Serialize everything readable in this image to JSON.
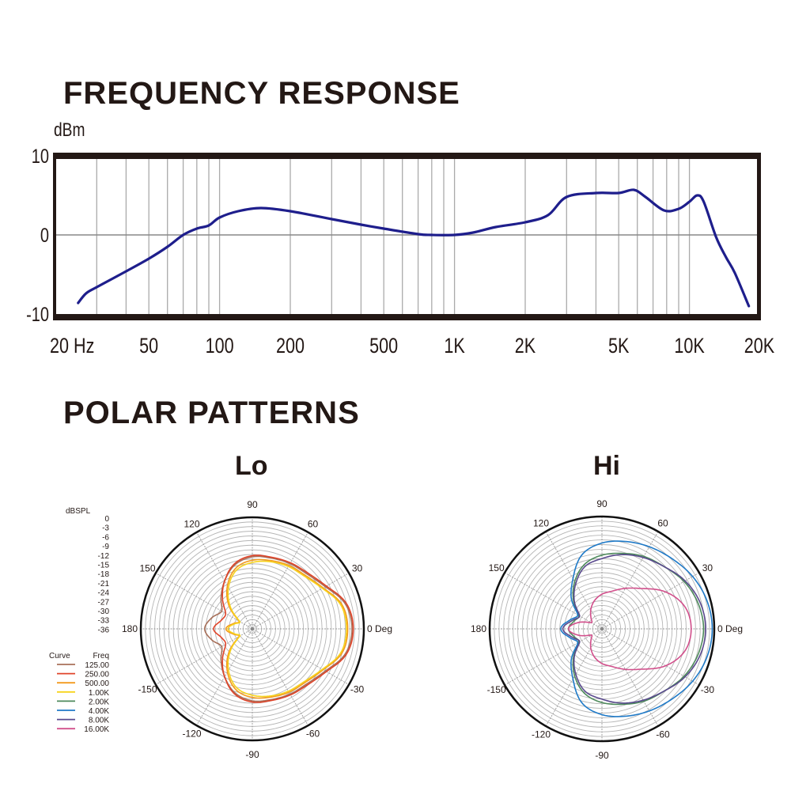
{
  "headings": {
    "frequency": "FREQUENCY RESPONSE",
    "polar": "POLAR PATTERNS",
    "lo": "Lo",
    "hi": "Hi"
  },
  "chart_data": [
    {
      "type": "line",
      "title": "FREQUENCY RESPONSE",
      "ylabel": "dBm",
      "xscale": "log",
      "xlim": [
        20,
        20000
      ],
      "ylim": [
        -10,
        10
      ],
      "yticks": [
        {
          "v": 10,
          "label": "10"
        },
        {
          "v": 0,
          "label": "0"
        },
        {
          "v": -10,
          "label": "-10"
        }
      ],
      "xticks": [
        {
          "v": 20,
          "label": "20 Hz"
        },
        {
          "v": 50,
          "label": "50"
        },
        {
          "v": 100,
          "label": "100"
        },
        {
          "v": 200,
          "label": "200"
        },
        {
          "v": 500,
          "label": "500"
        },
        {
          "v": 1000,
          "label": "1K"
        },
        {
          "v": 2000,
          "label": "2K"
        },
        {
          "v": 5000,
          "label": "5K"
        },
        {
          "v": 10000,
          "label": "10K"
        },
        {
          "v": 20000,
          "label": "20K"
        }
      ],
      "color": "#1e1e8c",
      "x": [
        25,
        27,
        30,
        40,
        50,
        60,
        70,
        80,
        90,
        100,
        120,
        150,
        200,
        300,
        400,
        500,
        700,
        800,
        1000,
        1200,
        1500,
        2000,
        2500,
        3000,
        4000,
        5000,
        5800,
        6500,
        7800,
        9000,
        10000,
        10800,
        11500,
        13000,
        14300,
        15600,
        17900
      ],
      "y": [
        -8.6,
        -7.4,
        -6.6,
        -4.6,
        -3.0,
        -1.5,
        0.0,
        0.8,
        1.2,
        2.2,
        3.0,
        3.4,
        3.0,
        2.0,
        1.3,
        0.8,
        0.1,
        0.0,
        0.0,
        0.3,
        1.0,
        1.6,
        2.5,
        4.8,
        5.3,
        5.3,
        5.7,
        4.8,
        3.1,
        3.3,
        4.2,
        5.0,
        4.2,
        -0.3,
        -2.8,
        -4.8,
        -9.0
      ]
    },
    {
      "type": "polar",
      "title": "Lo",
      "rlabel": "dBSPL",
      "rlim": [
        -36,
        0
      ],
      "rticks": [
        "0",
        "-3",
        "-6",
        "-9",
        "-12",
        "-15",
        "-18",
        "-21",
        "-24",
        "-27",
        "-30",
        "-33",
        "-36"
      ],
      "angle_labels": [
        {
          "a": 0,
          "label": "0 Deg"
        },
        {
          "a": 30,
          "label": "30"
        },
        {
          "a": 60,
          "label": "60"
        },
        {
          "a": 90,
          "label": "90"
        },
        {
          "a": 120,
          "label": "120"
        },
        {
          "a": 150,
          "label": "150"
        },
        {
          "a": 180,
          "label": "180"
        },
        {
          "a": -150,
          "label": "-150"
        },
        {
          "a": -120,
          "label": "-120"
        },
        {
          "a": -90,
          "label": "-90"
        },
        {
          "a": -60,
          "label": "-60"
        },
        {
          "a": -30,
          "label": "-30"
        }
      ],
      "angles": [
        0,
        15,
        30,
        45,
        60,
        75,
        90,
        105,
        120,
        135,
        150,
        165,
        180
      ],
      "series": [
        {
          "name": "125.00",
          "color": "#a8705a",
          "values": [
            -3.6,
            -4.7,
            -8.6,
            -10.8,
            -11.5,
            -12.2,
            -12.6,
            -14.4,
            -18.0,
            -21.6,
            -24.5,
            -22.3,
            -20.5
          ]
        },
        {
          "name": "250.00",
          "color": "#e0442a",
          "values": [
            -3.2,
            -4.3,
            -8.2,
            -10.4,
            -11.2,
            -11.9,
            -12.2,
            -14.0,
            -18.0,
            -22.3,
            -26.0,
            -25.5,
            -23.4
          ]
        },
        {
          "name": "500.00",
          "color": "#f39a1e",
          "values": [
            -5.0,
            -5.8,
            -9.4,
            -11.5,
            -12.2,
            -13.0,
            -13.7,
            -15.5,
            -19.8,
            -25.2,
            -31.0,
            -29.5,
            -27.4
          ]
        },
        {
          "name": "1.00K",
          "color": "#f7d31c",
          "values": [
            -5.4,
            -6.2,
            -9.7,
            -11.9,
            -12.6,
            -13.4,
            -14.4,
            -16.2,
            -20.5,
            -25.9,
            -31.3,
            -29.9,
            -28.1
          ]
        }
      ]
    },
    {
      "type": "polar",
      "title": "Hi",
      "rlim": [
        -36,
        0
      ],
      "angle_labels": [
        {
          "a": 0,
          "label": "0 Deg"
        },
        {
          "a": 30,
          "label": "30"
        },
        {
          "a": 60,
          "label": "60"
        },
        {
          "a": 90,
          "label": "90"
        },
        {
          "a": 120,
          "label": "120"
        },
        {
          "a": 150,
          "label": "150"
        },
        {
          "a": 180,
          "label": "180"
        },
        {
          "a": -150,
          "label": "-150"
        },
        {
          "a": -120,
          "label": "-120"
        },
        {
          "a": -90,
          "label": "-90"
        },
        {
          "a": -60,
          "label": "-60"
        },
        {
          "a": -30,
          "label": "-30"
        }
      ],
      "angles": [
        0,
        15,
        30,
        45,
        60,
        75,
        90,
        105,
        120,
        135,
        150,
        165,
        180
      ],
      "series": [
        {
          "name": "2.00K",
          "color": "#4e8a5c",
          "values": [
            -3.2,
            -3.9,
            -5.4,
            -7.6,
            -9.0,
            -10.8,
            -12.2,
            -14.4,
            -18.4,
            -23.0,
            -27.4,
            -26.6,
            -25.2
          ]
        },
        {
          "name": "4.00K",
          "color": "#1f7ac8",
          "values": [
            -0.4,
            -0.9,
            -2.2,
            -4.0,
            -5.4,
            -6.8,
            -8.3,
            -11.2,
            -17.3,
            -22.0,
            -27.0,
            -25.2,
            -22.7
          ]
        },
        {
          "name": "8.00K",
          "color": "#5a4a8e",
          "values": [
            -2.5,
            -3.2,
            -5.0,
            -7.6,
            -9.4,
            -11.2,
            -13.3,
            -15.1,
            -19.1,
            -23.4,
            -27.7,
            -25.9,
            -23.4
          ]
        },
        {
          "name": "16.00K",
          "color": "#d2508c",
          "values": [
            -7.2,
            -8.3,
            -12.2,
            -17.6,
            -20.9,
            -23.4,
            -24.8,
            -26.6,
            -28.8,
            -31.0,
            -32.0,
            -28.1,
            -25.2
          ]
        }
      ]
    }
  ],
  "legend": {
    "header_curve": "Curve",
    "header_freq": "Freq",
    "items": [
      {
        "label": "125.00",
        "color": "#a8705a"
      },
      {
        "label": "250.00",
        "color": "#e0442a"
      },
      {
        "label": "500.00",
        "color": "#f39a1e"
      },
      {
        "label": "1.00K",
        "color": "#f7d31c"
      },
      {
        "label": "2.00K",
        "color": "#4e8a5c"
      },
      {
        "label": "4.00K",
        "color": "#1f7ac8"
      },
      {
        "label": "8.00K",
        "color": "#5a4a8e"
      },
      {
        "label": "16.00K",
        "color": "#d2508c"
      }
    ]
  }
}
